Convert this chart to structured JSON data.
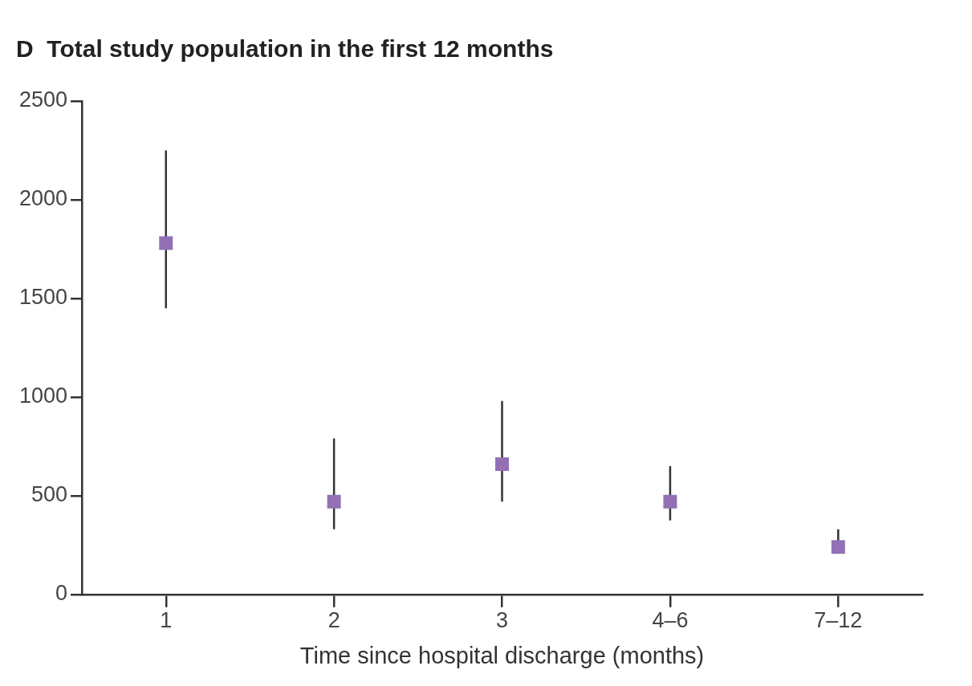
{
  "chart_data": {
    "type": "scatter",
    "title": "D  Total study population in the first 12 months",
    "xlabel": "Time since hospital discharge (months)",
    "categories": [
      "1",
      "2",
      "3",
      "4–6",
      "7–12"
    ],
    "values": [
      1780,
      470,
      660,
      470,
      240
    ],
    "errors": [
      [
        1450,
        2250
      ],
      [
        330,
        790
      ],
      [
        470,
        980
      ],
      [
        375,
        650
      ],
      [
        210,
        330
      ]
    ],
    "color": "#9370b5",
    "marker": "square",
    "ylim": [
      0,
      2500
    ],
    "yticks": [
      0,
      500,
      1000,
      1500,
      2000,
      2500
    ],
    "grid": false,
    "legend": false
  }
}
